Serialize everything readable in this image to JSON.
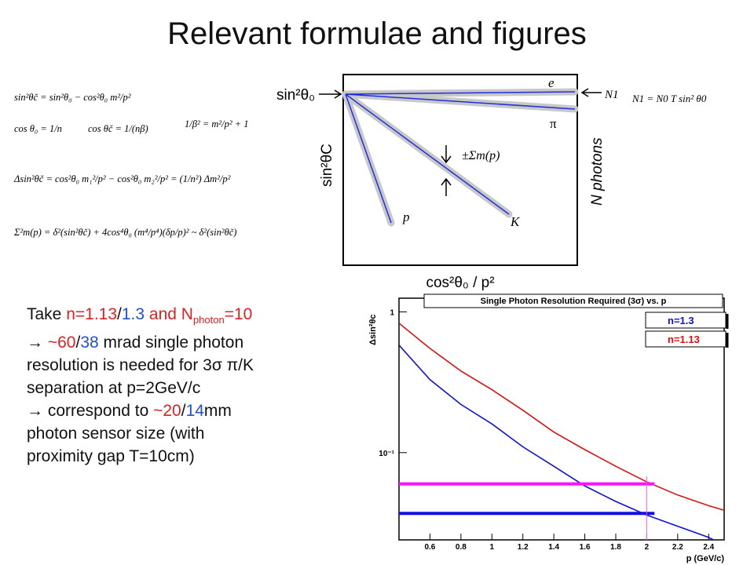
{
  "title": "Relevant formulae and figures",
  "formulas": [
    "sin²θč = sin²θ₀ − cos²θ₀ m²/p²",
    "cos θ₀ = 1/n",
    "cos θč = 1/(nβ)",
    "1/β² = m²/p² + 1",
    "Δsin²θč = cos²θ₀ m₁²/p² − cos²θ₀ m₂²/p² = (1/n²) Δm²/p²",
    "Σ²m(p) = δ²(sin²θč) + 4cos⁴θ₀ (m⁴/p⁴)(δp/p)² ~ δ²(sin²θč)"
  ],
  "diagram": {
    "y_label_left": "sin²θ₀",
    "y_axis_label": "sin²θC",
    "x_axis_label": "cos²θ₀ / p²",
    "right_axis_label": "N photons",
    "line_labels": [
      "e",
      "π",
      "K",
      "p"
    ],
    "sigma_label": "±Σm(p)",
    "n1_label": "N1",
    "n1_formula": "N1 = N0 T sin² θ0"
  },
  "paragraph": {
    "lines": [
      [
        {
          "text": "Take "
        },
        {
          "text": "n=1.13",
          "color": "#e02020"
        },
        {
          "text": "/"
        },
        {
          "text": "1.3",
          "color": "#2050d0"
        },
        {
          "text": " and N",
          "color": "#e02020"
        },
        {
          "text": "photon",
          "color": "#e02020",
          "sub": true
        },
        {
          "text": "=10",
          "color": "#e02020"
        }
      ],
      [
        {
          "text": "→ "
        },
        {
          "text": "~60",
          "color": "#e02020"
        },
        {
          "text": "/"
        },
        {
          "text": "38",
          "color": "#2050d0"
        },
        {
          "text": " mrad single photon"
        }
      ],
      [
        {
          "text": "resolution is needed for 3σ π/K"
        }
      ],
      [
        {
          "text": "separation at p=2GeV/c"
        }
      ],
      [
        {
          "text": "→ correspond to "
        },
        {
          "text": "~20",
          "color": "#e02020"
        },
        {
          "text": "/"
        },
        {
          "text": "14",
          "color": "#2050d0"
        },
        {
          "text": "mm"
        }
      ],
      [
        {
          "text": "photon sensor size (with"
        }
      ],
      [
        {
          "text": "proximity gap T=10cm)"
        }
      ]
    ]
  },
  "chart_data": {
    "type": "line",
    "title": "Single Photon Resolution Required (3σ) vs. p",
    "x_label": "p (GeV/c)",
    "y_label": "Δsin²θc",
    "log_y": true,
    "xlim": [
      0.4,
      2.5
    ],
    "ylim": [
      0.024,
      1.25
    ],
    "xticks": [
      0.6,
      0.8,
      1,
      1.2,
      1.4,
      1.6,
      1.8,
      2,
      2.2,
      2.4
    ],
    "yticks": [
      1,
      {
        "value": 0.1,
        "label": "10⁻¹"
      }
    ],
    "x": [
      0.4,
      0.6,
      0.8,
      1.0,
      1.2,
      1.4,
      1.6,
      1.8,
      2.0,
      2.2,
      2.4,
      2.5
    ],
    "series": [
      {
        "name": "n=1.3",
        "color": "#1010e0",
        "values": [
          0.58,
          0.33,
          0.22,
          0.16,
          0.11,
          0.08,
          0.058,
          0.045,
          0.036,
          0.03,
          0.025,
          0.022
        ]
      },
      {
        "name": "n=1.13",
        "color": "#e01010",
        "values": [
          0.83,
          0.55,
          0.38,
          0.28,
          0.2,
          0.14,
          0.105,
          0.08,
          0.062,
          0.05,
          0.042,
          0.039
        ]
      }
    ],
    "reference_lines": [
      {
        "color": "#ff10ff",
        "y": 0.06,
        "x": [
          0.4,
          2.05
        ]
      },
      {
        "color": "#1010e0",
        "y": 0.037,
        "x": [
          0.4,
          2.05
        ]
      }
    ],
    "vertical_line": {
      "color": "#ff60ff",
      "x": 2,
      "y": [
        0.024,
        0.068
      ]
    }
  }
}
